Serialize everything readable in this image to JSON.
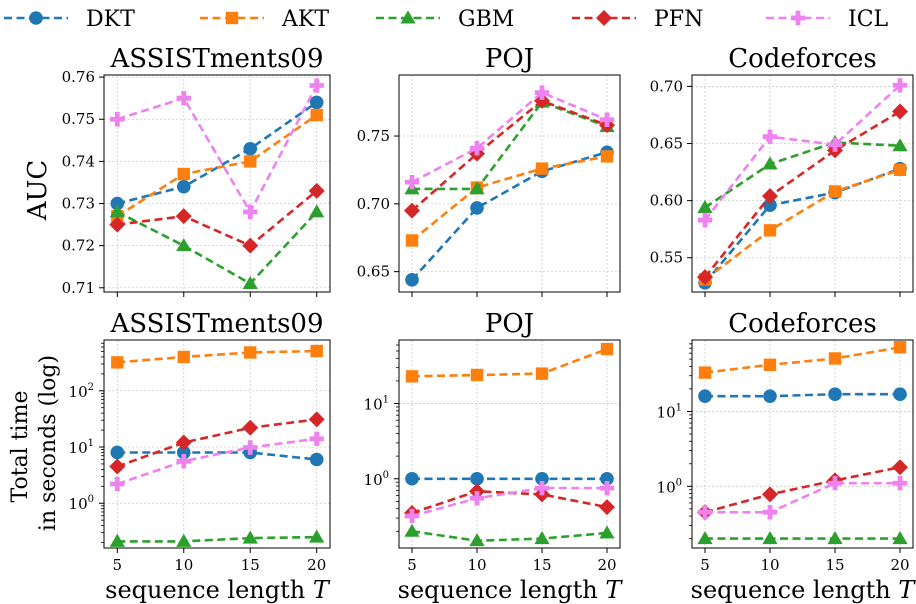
{
  "legend": {
    "entries": [
      {
        "name": "DKT",
        "color": "#1f77b4",
        "marker": "circle"
      },
      {
        "name": "AKT",
        "color": "#ff7f0e",
        "marker": "square"
      },
      {
        "name": "GBM",
        "color": "#2ca02c",
        "marker": "triangle"
      },
      {
        "name": "PFN",
        "color": "#d62728",
        "marker": "diamond"
      },
      {
        "name": "ICL",
        "color": "#ee82ee",
        "marker": "plus"
      }
    ]
  },
  "row_labels": {
    "top": "AUC",
    "bottom_line1": "Total time",
    "bottom_line2": "in seconds (log)"
  },
  "chart_data": [
    {
      "type": "line",
      "title": "ASSISTments09",
      "xlabel": "sequence length T",
      "ylabel": "AUC",
      "x": [
        5,
        10,
        15,
        20
      ],
      "xlim": [
        4.0,
        21.0
      ],
      "ylim": [
        0.709,
        0.7605
      ],
      "yscale": "linear",
      "yticks": [
        0.71,
        0.72,
        0.73,
        0.74,
        0.75,
        0.76
      ],
      "ytick_labels": [
        "0.71",
        "0.72",
        "0.73",
        "0.74",
        "0.75",
        "0.76"
      ],
      "grid": true,
      "series": [
        {
          "name": "DKT",
          "values": [
            0.73,
            0.734,
            0.743,
            0.754
          ]
        },
        {
          "name": "AKT",
          "values": [
            0.727,
            0.737,
            0.74,
            0.751
          ]
        },
        {
          "name": "GBM",
          "values": [
            0.728,
            0.72,
            0.711,
            0.728
          ]
        },
        {
          "name": "PFN",
          "values": [
            0.725,
            0.727,
            0.72,
            0.733
          ]
        },
        {
          "name": "ICL",
          "values": [
            0.75,
            0.755,
            0.728,
            0.758
          ]
        }
      ]
    },
    {
      "type": "line",
      "title": "POJ",
      "xlabel": "sequence length T",
      "x": [
        5,
        10,
        15,
        20
      ],
      "xlim": [
        4.0,
        21.0
      ],
      "ylim": [
        0.635,
        0.795
      ],
      "yscale": "linear",
      "yticks": [
        0.65,
        0.7,
        0.75
      ],
      "ytick_labels": [
        "0.65",
        "0.70",
        "0.75"
      ],
      "grid": true,
      "series": [
        {
          "name": "DKT",
          "values": [
            0.644,
            0.697,
            0.724,
            0.738
          ]
        },
        {
          "name": "AKT",
          "values": [
            0.673,
            0.712,
            0.726,
            0.735
          ]
        },
        {
          "name": "GBM",
          "values": [
            0.711,
            0.711,
            0.775,
            0.757
          ]
        },
        {
          "name": "PFN",
          "values": [
            0.695,
            0.737,
            0.776,
            0.758
          ]
        },
        {
          "name": "ICL",
          "values": [
            0.716,
            0.741,
            0.782,
            0.762
          ]
        }
      ]
    },
    {
      "type": "line",
      "title": "Codeforces",
      "xlabel": "sequence length T",
      "x": [
        5,
        10,
        15,
        20
      ],
      "xlim": [
        4.0,
        21.0
      ],
      "ylim": [
        0.52,
        0.71
      ],
      "yscale": "linear",
      "yticks": [
        0.55,
        0.6,
        0.65,
        0.7
      ],
      "ytick_labels": [
        "0.55",
        "0.60",
        "0.65",
        "0.70"
      ],
      "grid": true,
      "series": [
        {
          "name": "DKT",
          "values": [
            0.528,
            0.596,
            0.607,
            0.628
          ]
        },
        {
          "name": "AKT",
          "values": [
            0.531,
            0.574,
            0.608,
            0.627
          ]
        },
        {
          "name": "GBM",
          "values": [
            0.594,
            0.632,
            0.651,
            0.648
          ]
        },
        {
          "name": "PFN",
          "values": [
            0.533,
            0.604,
            0.644,
            0.678
          ]
        },
        {
          "name": "ICL",
          "values": [
            0.583,
            0.656,
            0.649,
            0.701
          ]
        }
      ]
    },
    {
      "type": "line",
      "title": "ASSISTments09",
      "xlabel": "sequence length T",
      "ylabel": "Total time in seconds (log)",
      "x": [
        5,
        10,
        15,
        20
      ],
      "xlim": [
        4.0,
        21.0
      ],
      "ylim": [
        0.16,
        800
      ],
      "yscale": "log",
      "yticks": [
        1,
        10,
        100
      ],
      "ytick_labels": [
        "10^0",
        "10^1",
        "10^2"
      ],
      "grid": true,
      "series": [
        {
          "name": "DKT",
          "values": [
            8,
            8,
            8,
            6
          ]
        },
        {
          "name": "AKT",
          "values": [
            320,
            400,
            480,
            510
          ]
        },
        {
          "name": "GBM",
          "values": [
            0.21,
            0.21,
            0.24,
            0.25
          ]
        },
        {
          "name": "PFN",
          "values": [
            4.5,
            12,
            22,
            31
          ]
        },
        {
          "name": "ICL",
          "values": [
            2.2,
            5.6,
            9.8,
            14
          ]
        }
      ]
    },
    {
      "type": "line",
      "title": "POJ",
      "xlabel": "sequence length T",
      "x": [
        5,
        10,
        15,
        20
      ],
      "xlim": [
        4.0,
        21.0
      ],
      "ylim": [
        0.12,
        70
      ],
      "yscale": "log",
      "yticks": [
        1,
        10
      ],
      "ytick_labels": [
        "10^0",
        "10^1"
      ],
      "grid": true,
      "series": [
        {
          "name": "DKT",
          "values": [
            1.0,
            1.0,
            1.0,
            1.0
          ]
        },
        {
          "name": "AKT",
          "values": [
            23,
            24,
            25,
            53
          ]
        },
        {
          "name": "GBM",
          "values": [
            0.2,
            0.15,
            0.16,
            0.19
          ]
        },
        {
          "name": "PFN",
          "values": [
            0.35,
            0.68,
            0.62,
            0.42
          ]
        },
        {
          "name": "ICL",
          "values": [
            0.32,
            0.55,
            0.75,
            0.75
          ]
        }
      ]
    },
    {
      "type": "line",
      "title": "Codeforces",
      "xlabel": "sequence length T",
      "x": [
        5,
        10,
        15,
        20
      ],
      "xlim": [
        4.0,
        21.0
      ],
      "ylim": [
        0.15,
        90
      ],
      "yscale": "log",
      "yticks": [
        1,
        10
      ],
      "ytick_labels": [
        "10^0",
        "10^1"
      ],
      "grid": true,
      "series": [
        {
          "name": "DKT",
          "values": [
            16,
            16,
            17,
            17
          ]
        },
        {
          "name": "AKT",
          "values": [
            33,
            42,
            51,
            72
          ]
        },
        {
          "name": "GBM",
          "values": [
            0.2,
            0.2,
            0.2,
            0.2
          ]
        },
        {
          "name": "PFN",
          "values": [
            0.45,
            0.78,
            1.2,
            1.8
          ]
        },
        {
          "name": "ICL",
          "values": [
            0.45,
            0.45,
            1.1,
            1.1
          ]
        }
      ]
    }
  ]
}
